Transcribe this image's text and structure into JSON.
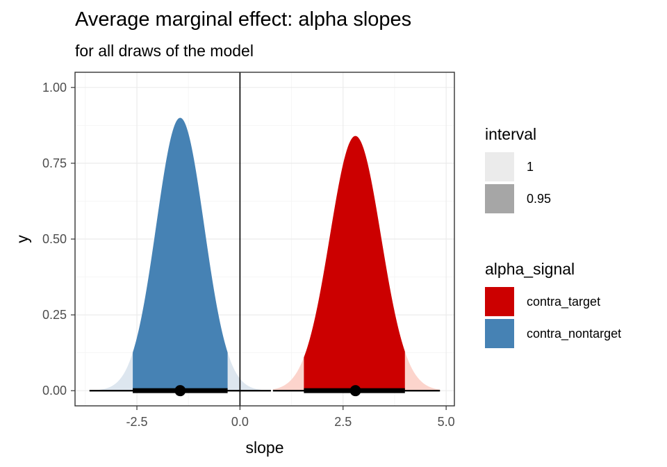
{
  "title": "Average marginal effect: alpha slopes",
  "subtitle": "for all draws of the model",
  "legend_interval": {
    "title": "interval",
    "items": [
      {
        "label": "1",
        "color": "#ebebeb"
      },
      {
        "label": "0.95",
        "color": "#a6a6a6"
      }
    ]
  },
  "legend_signal": {
    "title": "alpha_signal",
    "items": [
      {
        "label": "contra_target",
        "color": "#cc0000"
      },
      {
        "label": "contra_nontarget",
        "color": "#4682b4"
      }
    ]
  },
  "chart_data": {
    "type": "area",
    "xlabel": "slope",
    "ylabel": "y",
    "xlim": [
      -4.0,
      5.2
    ],
    "ylim": [
      -0.05,
      1.05
    ],
    "x_ticks": [
      -2.5,
      0.0,
      2.5,
      5.0
    ],
    "x_tick_labels": [
      "-2.5",
      "0.0",
      "2.5",
      "5.0"
    ],
    "y_ticks": [
      0.0,
      0.25,
      0.5,
      0.75,
      1.0
    ],
    "y_tick_labels": [
      "0.00",
      "0.25",
      "0.50",
      "0.75",
      "1.00"
    ],
    "vline_x": 0,
    "grid": true,
    "series": [
      {
        "name": "contra_nontarget",
        "color": "#4682b4",
        "light_color": "#dde6ef",
        "density_peak_x": -1.45,
        "density_peak_y": 0.9,
        "sd": 0.58,
        "ci95": [
          -2.6,
          -0.3
        ],
        "range": [
          -3.65,
          0.75
        ],
        "point_estimate": -1.45
      },
      {
        "name": "contra_target",
        "color": "#cc0000",
        "light_color": "#fcd4cc",
        "density_peak_x": 2.8,
        "density_peak_y": 0.84,
        "sd": 0.62,
        "ci95": [
          1.55,
          4.0
        ],
        "range": [
          0.8,
          4.85
        ],
        "point_estimate": 2.8
      }
    ]
  }
}
